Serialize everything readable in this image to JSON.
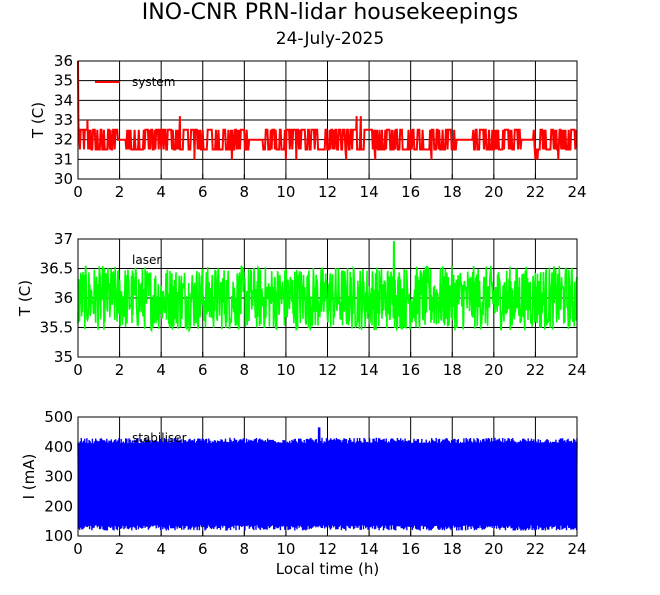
{
  "title": "INO-CNR PRN-lidar housekeepings",
  "subtitle": "24-July-2025",
  "chart_data": [
    {
      "type": "line",
      "ylabel": "T (C)",
      "xlabel": "",
      "xlim": [
        0,
        24
      ],
      "ylim": [
        30,
        36
      ],
      "xticks": [
        "0",
        "2",
        "4",
        "6",
        "8",
        "10",
        "12",
        "14",
        "16",
        "18",
        "20",
        "22",
        "24"
      ],
      "yticks": [
        "30",
        "31",
        "32",
        "33",
        "34",
        "35",
        "36"
      ],
      "grid": true,
      "legend_placement": "top-left",
      "series": [
        {
          "name": "system",
          "color": "#ff0000",
          "pattern": "digitized-toggle",
          "base": 32.0,
          "range": [
            31.5,
            32.5
          ],
          "start_values": [
            36.0,
            34.5,
            33.0,
            32.5
          ],
          "spikes": [
            [
              0.45,
              33.0
            ],
            [
              4.9,
              33.2
            ],
            [
              5.6,
              31.0
            ],
            [
              7.4,
              31.0
            ],
            [
              10.0,
              31.0
            ],
            [
              10.5,
              31.0
            ],
            [
              12.9,
              31.0
            ],
            [
              13.4,
              33.2
            ],
            [
              13.6,
              33.2
            ],
            [
              14.3,
              31.0
            ],
            [
              17.0,
              31.0
            ],
            [
              22.0,
              31.0
            ],
            [
              22.1,
              31.0
            ],
            [
              23.1,
              31.0
            ]
          ],
          "gaps": [
            [
              1.9,
              2.3
            ],
            [
              8.2,
              8.9
            ],
            [
              18.2,
              19.0
            ],
            [
              21.3,
              21.9
            ]
          ]
        }
      ]
    },
    {
      "type": "line",
      "ylabel": "T (C)",
      "xlabel": "",
      "xlim": [
        0,
        24
      ],
      "ylim": [
        35,
        37
      ],
      "xticks": [
        "0",
        "2",
        "4",
        "6",
        "8",
        "10",
        "12",
        "14",
        "16",
        "18",
        "20",
        "22",
        "24"
      ],
      "yticks": [
        "35",
        "35.5",
        "36",
        "36.5",
        "37"
      ],
      "grid": true,
      "legend_placement": "top-left",
      "series": [
        {
          "name": "laser",
          "color": "#00ff00",
          "pattern": "noise",
          "center": 36.0,
          "amplitude": 0.55,
          "peak": [
            15.2,
            36.95
          ]
        }
      ]
    },
    {
      "type": "line",
      "ylabel": "I (mA)",
      "xlabel": "Local time (h)",
      "xlim": [
        0,
        24
      ],
      "ylim": [
        100,
        500
      ],
      "xticks": [
        "0",
        "2",
        "4",
        "6",
        "8",
        "10",
        "12",
        "14",
        "16",
        "18",
        "20",
        "22",
        "24"
      ],
      "yticks": [
        "100",
        "200",
        "300",
        "400",
        "500"
      ],
      "grid": true,
      "legend_placement": "top-left",
      "series": [
        {
          "name": "stabiliser",
          "color": "#0000ff",
          "pattern": "band",
          "band_top": 420,
          "band_bottom": 130,
          "peak": [
            11.6,
            465
          ]
        }
      ]
    }
  ]
}
